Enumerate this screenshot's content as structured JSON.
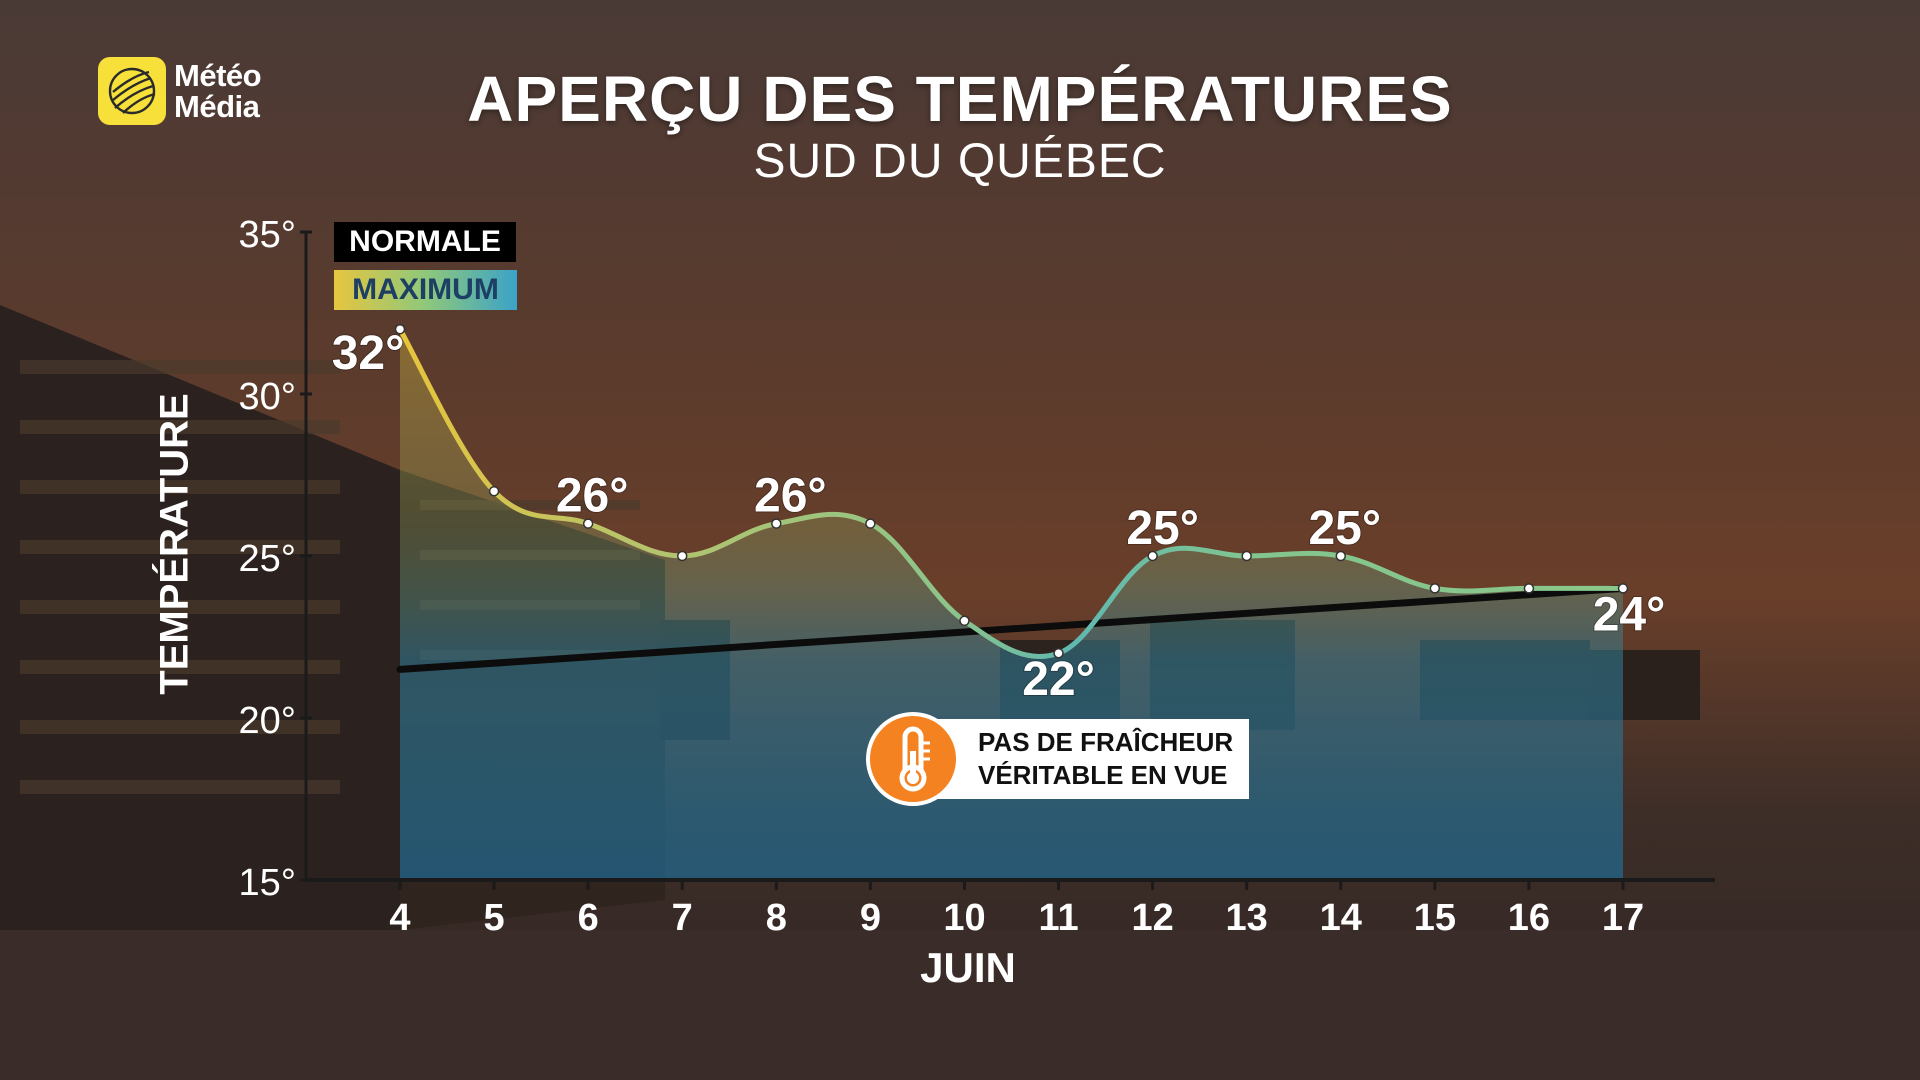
{
  "brand": {
    "logo_line1": "Météo",
    "logo_line2": "Média",
    "logo_icon": "globe-icon",
    "logo_color": "#f7e03a"
  },
  "header": {
    "title": "APERÇU DES TEMPÉRATURES",
    "subtitle": "SUD DU QUÉBEC"
  },
  "legend": {
    "normal_label": "NORMALE",
    "max_label": "MAXIMUM"
  },
  "callout": {
    "icon": "thermometer-icon",
    "line1": "PAS DE FRAÎCHEUR",
    "line2": "VÉRITABLE EN VUE",
    "color": "#f58220"
  },
  "chart_data": {
    "type": "line",
    "title": "APERÇU DES TEMPÉRATURES",
    "subtitle": "SUD DU QUÉBEC",
    "xlabel": "JUIN",
    "ylabel": "TEMPÉRATURE",
    "x": [
      4,
      5,
      6,
      7,
      8,
      9,
      10,
      11,
      12,
      13,
      14,
      15,
      16,
      17
    ],
    "ylim": [
      15,
      35
    ],
    "yticks": [
      "15°",
      "20°",
      "25°",
      "30°",
      "35°"
    ],
    "ytick_values": [
      15,
      20,
      25,
      30,
      35
    ],
    "series": [
      {
        "name": "MAXIMUM",
        "values": [
          32,
          27,
          26,
          25,
          26,
          26,
          23,
          22,
          25,
          25,
          25,
          24,
          24,
          24
        ]
      },
      {
        "name": "NORMALE",
        "values": [
          21.5,
          21.7,
          21.8,
          22.0,
          22.2,
          22.4,
          22.6,
          22.8,
          23.0,
          23.2,
          23.4,
          23.6,
          23.8,
          24.0
        ]
      }
    ],
    "data_labels": [
      {
        "x": 4,
        "text": "32°"
      },
      {
        "x": 6,
        "text": "26°"
      },
      {
        "x": 8,
        "text": "26°"
      },
      {
        "x": 11,
        "text": "22°"
      },
      {
        "x": 12,
        "text": "25°"
      },
      {
        "x": 14,
        "text": "25°"
      },
      {
        "x": 17,
        "text": "24°"
      }
    ],
    "grid": false,
    "legend_position": "top-left"
  }
}
